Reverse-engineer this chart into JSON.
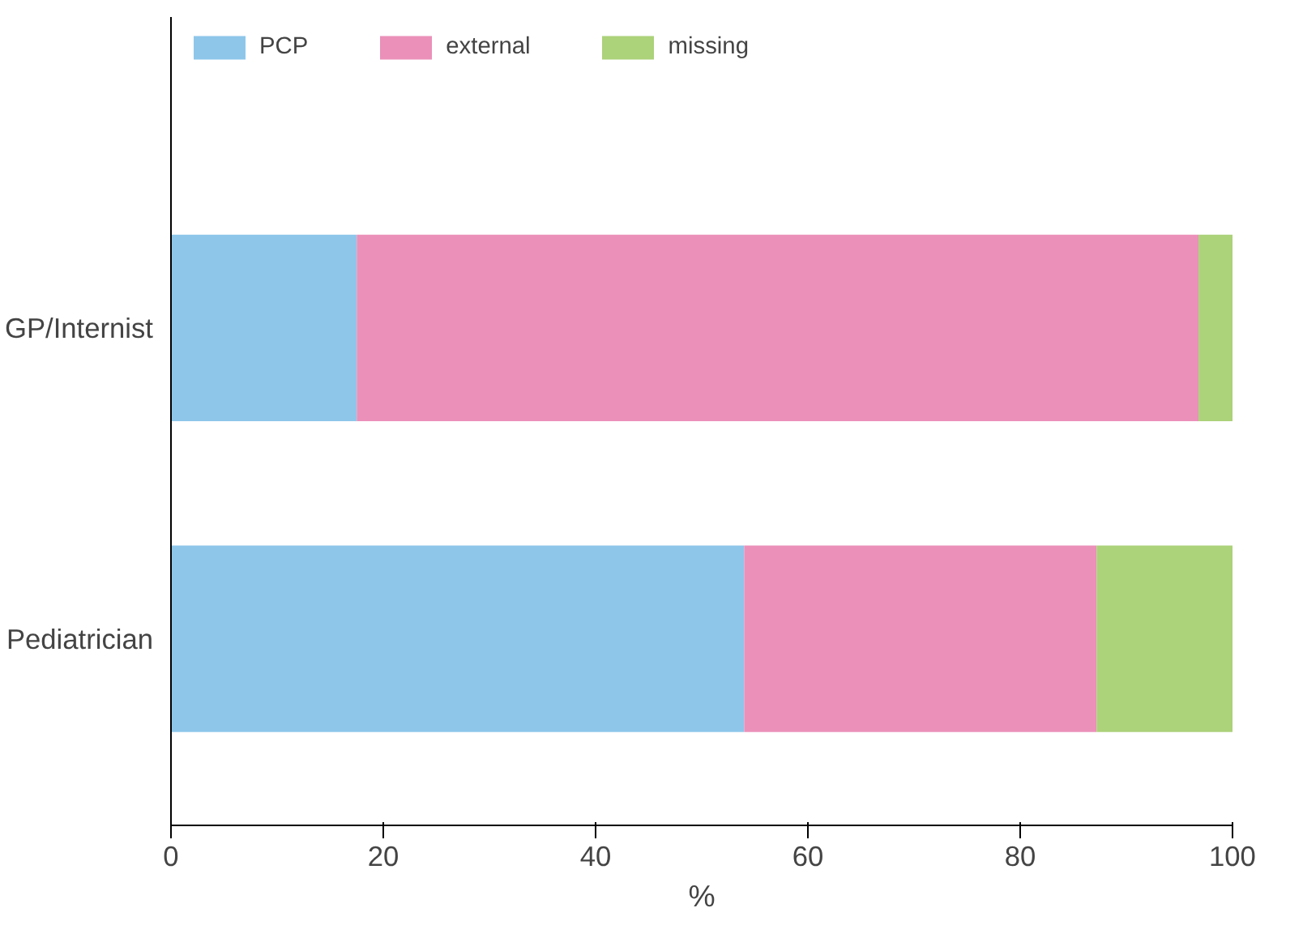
{
  "chart_data": {
    "type": "bar",
    "orientation": "horizontal",
    "stacked": true,
    "xlabel": "%",
    "categories": [
      "GP/Internist",
      "Pediatrician"
    ],
    "series": [
      {
        "name": "PCP",
        "color": "#8ec6ea",
        "values": [
          17.5,
          54
        ]
      },
      {
        "name": "external",
        "color": "#eb90b9",
        "values": [
          79.3,
          33.2
        ]
      },
      {
        "name": "missing",
        "color": "#acd27a",
        "values": [
          3.2,
          12.8
        ]
      }
    ],
    "xlim": [
      0,
      100
    ],
    "xticks": [
      0,
      20,
      40,
      60,
      80,
      100
    ],
    "grid": false,
    "legend": "top left"
  }
}
